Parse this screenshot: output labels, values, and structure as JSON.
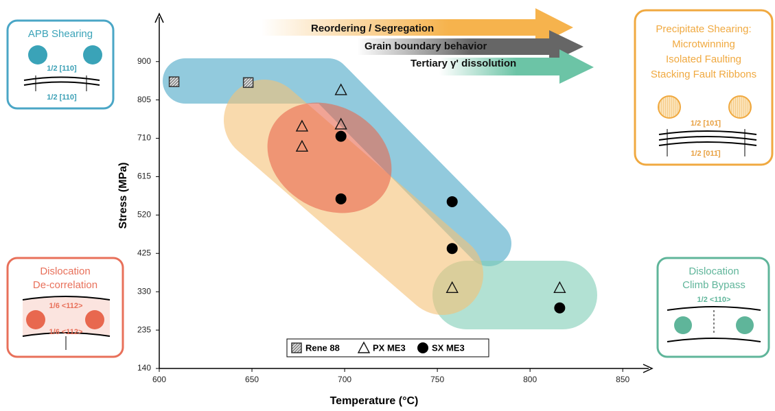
{
  "chart_data": {
    "type": "scatter",
    "x_label": "Temperature (°C)",
    "y_label": "Stress (MPa)",
    "xlim": [
      600,
      864
    ],
    "ylim": [
      140,
      1010
    ],
    "xticks": [
      600,
      650,
      700,
      750,
      800,
      850
    ],
    "yticks": [
      140,
      235,
      330,
      425,
      520,
      615,
      710,
      805,
      900
    ],
    "legend": "lower center",
    "series": [
      {
        "name": "Rene 88",
        "marker": "hatched-square",
        "color": "#333333",
        "x": [
          608,
          648
        ],
        "values": [
          850,
          848
        ]
      },
      {
        "name": "PX ME3",
        "marker": "open-triangle",
        "color": "#111111",
        "x": [
          698,
          677,
          698,
          677,
          758,
          816
        ],
        "values": [
          830,
          740,
          745,
          690,
          340,
          340
        ]
      },
      {
        "name": "SX ME3",
        "marker": "filled-circle",
        "color": "#000000",
        "x": [
          698,
          698,
          758,
          758,
          816
        ],
        "values": [
          715,
          560,
          553,
          437,
          290
        ]
      }
    ],
    "processes": [
      "Reordering / Segregation",
      "Grain boundary behavior",
      "Tertiary γ' dissolution"
    ],
    "panels": [
      {
        "title": [
          "APB Shearing"
        ],
        "labels": [
          "1/2 [110]",
          "1/2 [110]"
        ]
      },
      {
        "title": [
          "Precipitate Shearing:",
          "Microtwinning",
          "Isolated Faulting",
          "Stacking Fault Ribbons"
        ],
        "labels": [
          "1/2 [101̄]",
          "1/2 [011̄]"
        ]
      },
      {
        "title": [
          "Dislocation",
          "De-correlation"
        ],
        "labels": [
          "1/6 <112>",
          "1/6 <112>"
        ]
      },
      {
        "title": [
          "Dislocation",
          "Climb Bypass"
        ],
        "labels": [
          "1/2 <110>"
        ]
      }
    ]
  }
}
